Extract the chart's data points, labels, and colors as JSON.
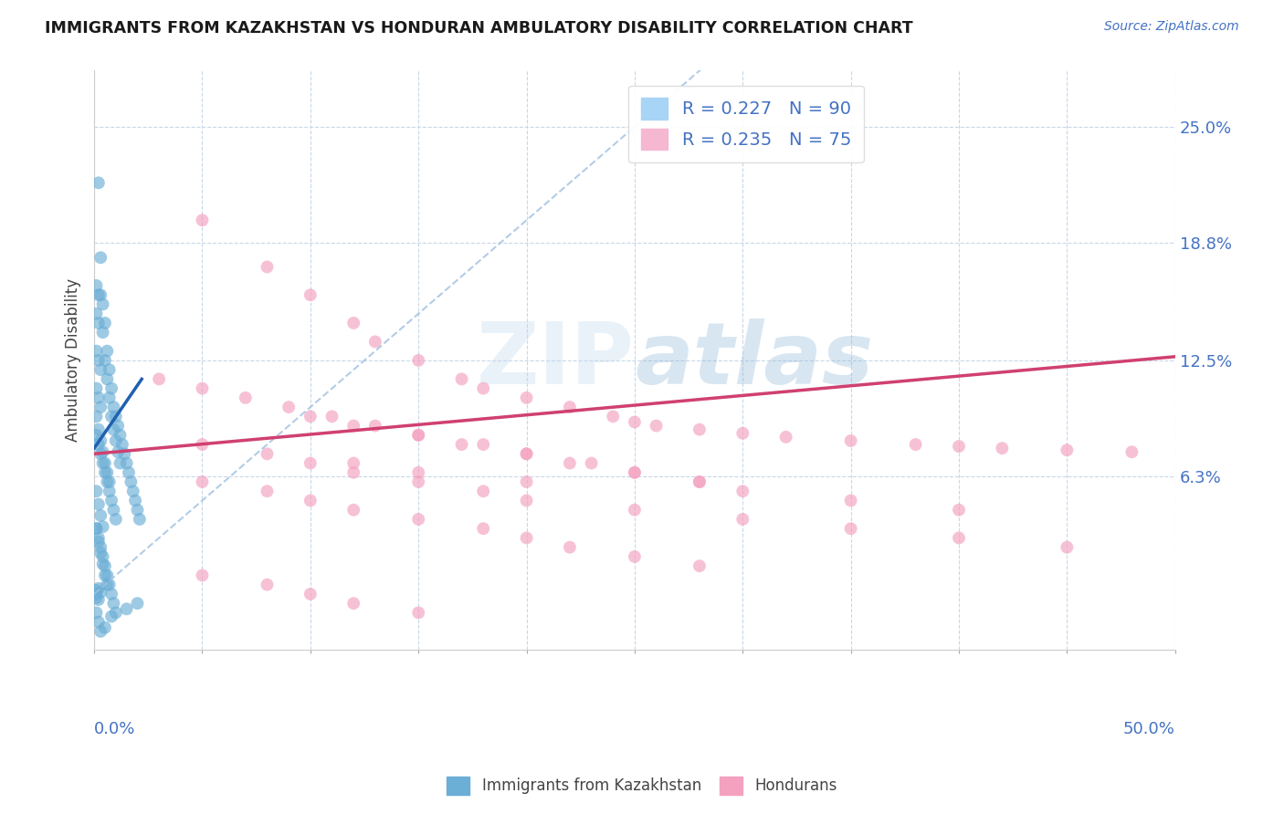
{
  "title": "IMMIGRANTS FROM KAZAKHSTAN VS HONDURAN AMBULATORY DISABILITY CORRELATION CHART",
  "source": "Source: ZipAtlas.com",
  "ylabel": "Ambulatory Disability",
  "ytick_labels": [
    "6.3%",
    "12.5%",
    "18.8%",
    "25.0%"
  ],
  "ytick_values": [
    0.063,
    0.125,
    0.188,
    0.25
  ],
  "xlim": [
    0.0,
    0.5
  ],
  "ylim": [
    -0.03,
    0.28
  ],
  "legend": {
    "series1_label": "R = 0.227   N = 90",
    "series2_label": "R = 0.235   N = 75",
    "series1_color": "#a8d4f5",
    "series2_color": "#f5b8d0"
  },
  "watermark": "ZIPAtlas",
  "kazakhstan_color": "#6baed6",
  "honduras_color": "#f4a0bf",
  "kazakhstan_scatter": {
    "x": [
      0.002,
      0.003,
      0.004,
      0.005,
      0.006,
      0.007,
      0.008,
      0.009,
      0.01,
      0.011,
      0.012,
      0.013,
      0.014,
      0.015,
      0.016,
      0.017,
      0.018,
      0.019,
      0.02,
      0.021,
      0.003,
      0.004,
      0.005,
      0.006,
      0.007,
      0.008,
      0.009,
      0.01,
      0.011,
      0.012,
      0.001,
      0.002,
      0.003,
      0.004,
      0.005,
      0.006,
      0.007,
      0.008,
      0.009,
      0.01,
      0.001,
      0.002,
      0.003,
      0.004,
      0.005,
      0.006,
      0.007,
      0.008,
      0.009,
      0.01,
      0.001,
      0.002,
      0.003,
      0.004,
      0.005,
      0.006,
      0.001,
      0.002,
      0.003,
      0.004,
      0.001,
      0.002,
      0.003,
      0.004,
      0.005,
      0.006,
      0.007,
      0.001,
      0.002,
      0.003,
      0.001,
      0.002,
      0.003,
      0.001,
      0.002,
      0.001,
      0.002,
      0.001,
      0.002,
      0.003,
      0.005,
      0.008,
      0.015,
      0.02,
      0.001,
      0.001,
      0.001,
      0.002,
      0.002,
      0.003
    ],
    "y": [
      0.22,
      0.18,
      0.155,
      0.145,
      0.13,
      0.12,
      0.11,
      0.1,
      0.095,
      0.09,
      0.085,
      0.08,
      0.075,
      0.07,
      0.065,
      0.06,
      0.055,
      0.05,
      0.045,
      0.04,
      0.16,
      0.14,
      0.125,
      0.115,
      0.105,
      0.095,
      0.088,
      0.082,
      0.076,
      0.07,
      0.085,
      0.08,
      0.075,
      0.07,
      0.065,
      0.06,
      0.055,
      0.05,
      0.045,
      0.04,
      0.035,
      0.03,
      0.025,
      0.02,
      0.015,
      0.01,
      0.005,
      0.0,
      -0.005,
      -0.01,
      0.035,
      0.028,
      0.022,
      0.016,
      0.01,
      0.005,
      0.055,
      0.048,
      0.042,
      0.036,
      0.095,
      0.088,
      0.082,
      0.076,
      0.07,
      0.065,
      0.06,
      0.11,
      0.105,
      0.1,
      0.13,
      0.125,
      0.12,
      0.15,
      0.145,
      0.165,
      0.16,
      -0.01,
      -0.015,
      -0.02,
      -0.018,
      -0.012,
      -0.008,
      -0.005,
      0.0,
      0.002,
      -0.002,
      0.003,
      -0.003,
      0.001
    ]
  },
  "honduras_scatter": {
    "x": [
      0.05,
      0.08,
      0.1,
      0.12,
      0.13,
      0.15,
      0.17,
      0.18,
      0.2,
      0.22,
      0.24,
      0.25,
      0.26,
      0.28,
      0.3,
      0.32,
      0.35,
      0.38,
      0.4,
      0.42,
      0.45,
      0.48,
      0.1,
      0.12,
      0.15,
      0.18,
      0.2,
      0.22,
      0.25,
      0.28,
      0.05,
      0.08,
      0.1,
      0.12,
      0.15,
      0.18,
      0.2,
      0.22,
      0.25,
      0.28,
      0.05,
      0.08,
      0.1,
      0.12,
      0.15,
      0.03,
      0.05,
      0.07,
      0.09,
      0.11,
      0.13,
      0.15,
      0.17,
      0.2,
      0.23,
      0.25,
      0.28,
      0.3,
      0.35,
      0.4,
      0.1,
      0.12,
      0.15,
      0.18,
      0.2,
      0.25,
      0.3,
      0.35,
      0.4,
      0.45,
      0.05,
      0.08,
      0.12,
      0.15,
      0.2
    ],
    "y": [
      0.2,
      0.175,
      0.16,
      0.145,
      0.135,
      0.125,
      0.115,
      0.11,
      0.105,
      0.1,
      0.095,
      0.092,
      0.09,
      0.088,
      0.086,
      0.084,
      0.082,
      0.08,
      0.079,
      0.078,
      0.077,
      0.076,
      0.095,
      0.09,
      0.085,
      0.08,
      0.075,
      0.07,
      0.065,
      0.06,
      0.06,
      0.055,
      0.05,
      0.045,
      0.04,
      0.035,
      0.03,
      0.025,
      0.02,
      0.015,
      0.01,
      0.005,
      0.0,
      -0.005,
      -0.01,
      0.115,
      0.11,
      0.105,
      0.1,
      0.095,
      0.09,
      0.085,
      0.08,
      0.075,
      0.07,
      0.065,
      0.06,
      0.055,
      0.05,
      0.045,
      0.07,
      0.065,
      0.06,
      0.055,
      0.05,
      0.045,
      0.04,
      0.035,
      0.03,
      0.025,
      0.08,
      0.075,
      0.07,
      0.065,
      0.06
    ]
  },
  "kazakhstan_trend_dashed": {
    "x": [
      0.0,
      0.5
    ],
    "y": [
      0.0,
      0.5
    ]
  },
  "kazakhstan_trend_solid": {
    "x": [
      0.0,
      0.022
    ],
    "y": [
      0.078,
      0.115
    ]
  },
  "honduras_trend": {
    "x": [
      0.0,
      0.5
    ],
    "y": [
      0.075,
      0.127
    ]
  }
}
